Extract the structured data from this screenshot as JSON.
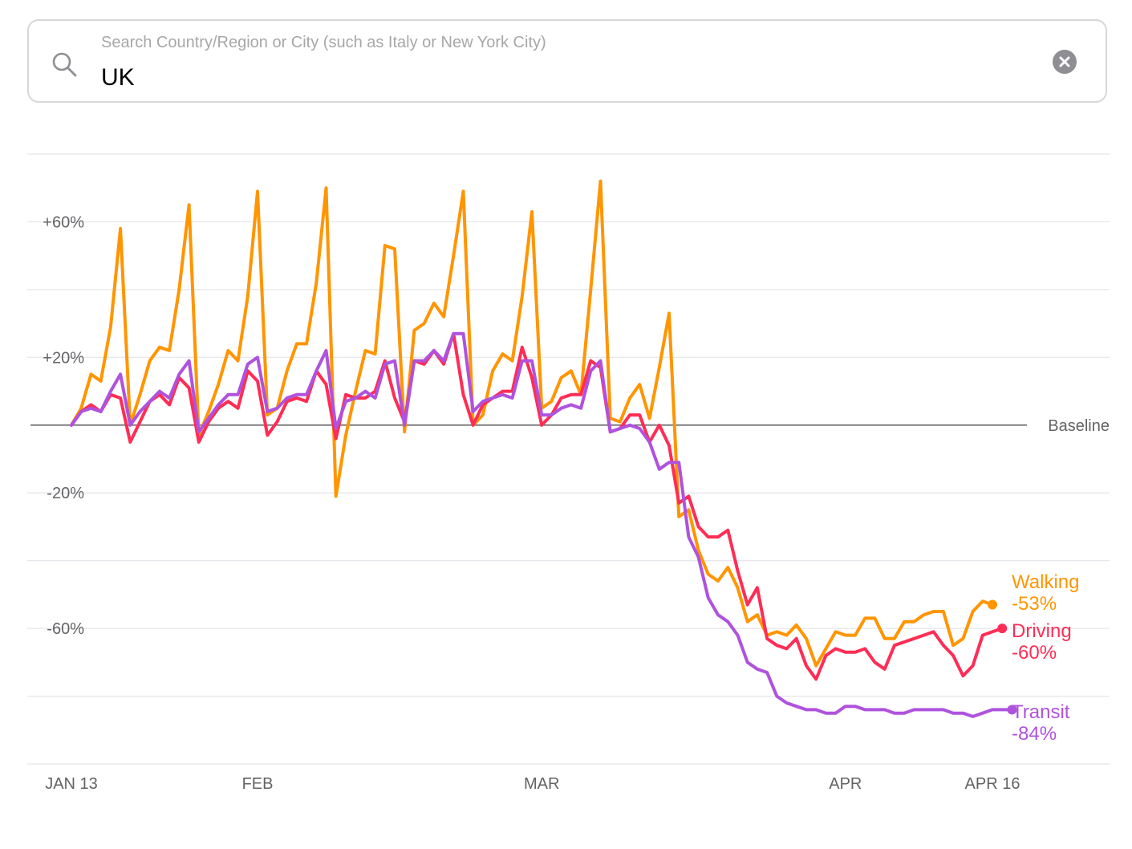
{
  "search": {
    "placeholder": "Search Country/Region or City (such as Italy or New York City)",
    "value": "UK",
    "icon": "search-icon",
    "clear_icon": "close-icon"
  },
  "chart_data": {
    "type": "line",
    "title": "",
    "xlabel": "",
    "ylabel": "",
    "x_start": "2020-01-13",
    "x_end": "2020-04-16",
    "xlim": [
      "2020-01-13",
      "2020-04-16"
    ],
    "ylim": [
      -100,
      80
    ],
    "y_ticks": [
      {
        "value": 60,
        "label": "+60%"
      },
      {
        "value": 20,
        "label": "+20%"
      },
      {
        "value": -20,
        "label": "-20%"
      },
      {
        "value": -60,
        "label": "-60%"
      }
    ],
    "x_ticks": [
      {
        "date": "2020-01-13",
        "label": "JAN 13"
      },
      {
        "date": "2020-02-01",
        "label": "FEB"
      },
      {
        "date": "2020-03-01",
        "label": "MAR"
      },
      {
        "date": "2020-04-01",
        "label": "APR"
      },
      {
        "date": "2020-04-16",
        "label": "APR 16"
      }
    ],
    "baseline": {
      "value": 0,
      "label": "Baseline"
    },
    "grid": true,
    "series": [
      {
        "name": "Walking",
        "end_label": "-53%",
        "color": "#ff9500",
        "values": [
          0,
          5,
          15,
          13,
          29,
          58,
          0,
          9,
          19,
          23,
          22,
          40,
          65,
          -3,
          4,
          12,
          22,
          19,
          38,
          69,
          3,
          5,
          16,
          24,
          24,
          42,
          70,
          -21,
          -3,
          10,
          22,
          21,
          53,
          52,
          -2,
          28,
          30,
          36,
          32,
          50,
          69,
          0,
          3,
          16,
          21,
          19,
          38,
          63,
          5,
          7,
          14,
          16,
          9,
          40,
          72,
          2,
          1,
          8,
          12,
          2,
          17,
          33,
          -27,
          -25,
          -37,
          -44,
          -46,
          -42,
          -48,
          -58,
          -56,
          -62,
          -61,
          -62,
          -59,
          -63,
          -71,
          -66,
          -61,
          -62,
          -62,
          -57,
          -57,
          -63,
          -63,
          -58,
          -58,
          -56,
          -55,
          -55,
          -65,
          -63,
          -55,
          -52,
          -53
        ]
      },
      {
        "name": "Driving",
        "end_label": "-60%",
        "color": "#ff2d55",
        "values": [
          0,
          4,
          6,
          4,
          9,
          8,
          -5,
          1,
          7,
          9,
          6,
          14,
          11,
          -5,
          1,
          5,
          7,
          5,
          16,
          13,
          -3,
          1,
          7,
          8,
          7,
          16,
          12,
          -4,
          9,
          8,
          8,
          10,
          19,
          8,
          1,
          19,
          18,
          22,
          18,
          27,
          9,
          0,
          6,
          8,
          10,
          10,
          23,
          14,
          0,
          3,
          8,
          9,
          9,
          19,
          17,
          -2,
          -1,
          3,
          3,
          -5,
          0,
          -6,
          -23,
          -21,
          -30,
          -33,
          -33,
          -31,
          -43,
          -53,
          -48,
          -63,
          -65,
          -66,
          -63,
          -71,
          -75,
          -68,
          -66,
          -67,
          -67,
          -66,
          -70,
          -72,
          -65,
          -64,
          -63,
          -62,
          -61,
          -65,
          -68,
          -74,
          -71,
          -62,
          -61,
          -60
        ]
      },
      {
        "name": "Transit",
        "end_label": "-84%",
        "color": "#af52de",
        "values": [
          0,
          4,
          5,
          4,
          10,
          15,
          0,
          4,
          7,
          10,
          8,
          15,
          19,
          -2,
          2,
          6,
          9,
          9,
          18,
          20,
          4,
          5,
          8,
          9,
          9,
          16,
          22,
          -1,
          7,
          8,
          10,
          8,
          18,
          19,
          0,
          19,
          19,
          22,
          19,
          27,
          27,
          4,
          7,
          8,
          9,
          8,
          19,
          19,
          3,
          3,
          5,
          6,
          5,
          16,
          19,
          -2,
          -1,
          0,
          -1,
          -5,
          -13,
          -11,
          -11,
          -33,
          -39,
          -51,
          -56,
          -58,
          -62,
          -70,
          -72,
          -73,
          -80,
          -82,
          -83,
          -84,
          -84,
          -85,
          -85,
          -83,
          -83,
          -84,
          -84,
          -84,
          -85,
          -85,
          -84,
          -84,
          -84,
          -84,
          -85,
          -85,
          -86,
          -85,
          -84,
          -84,
          -84
        ]
      }
    ]
  }
}
